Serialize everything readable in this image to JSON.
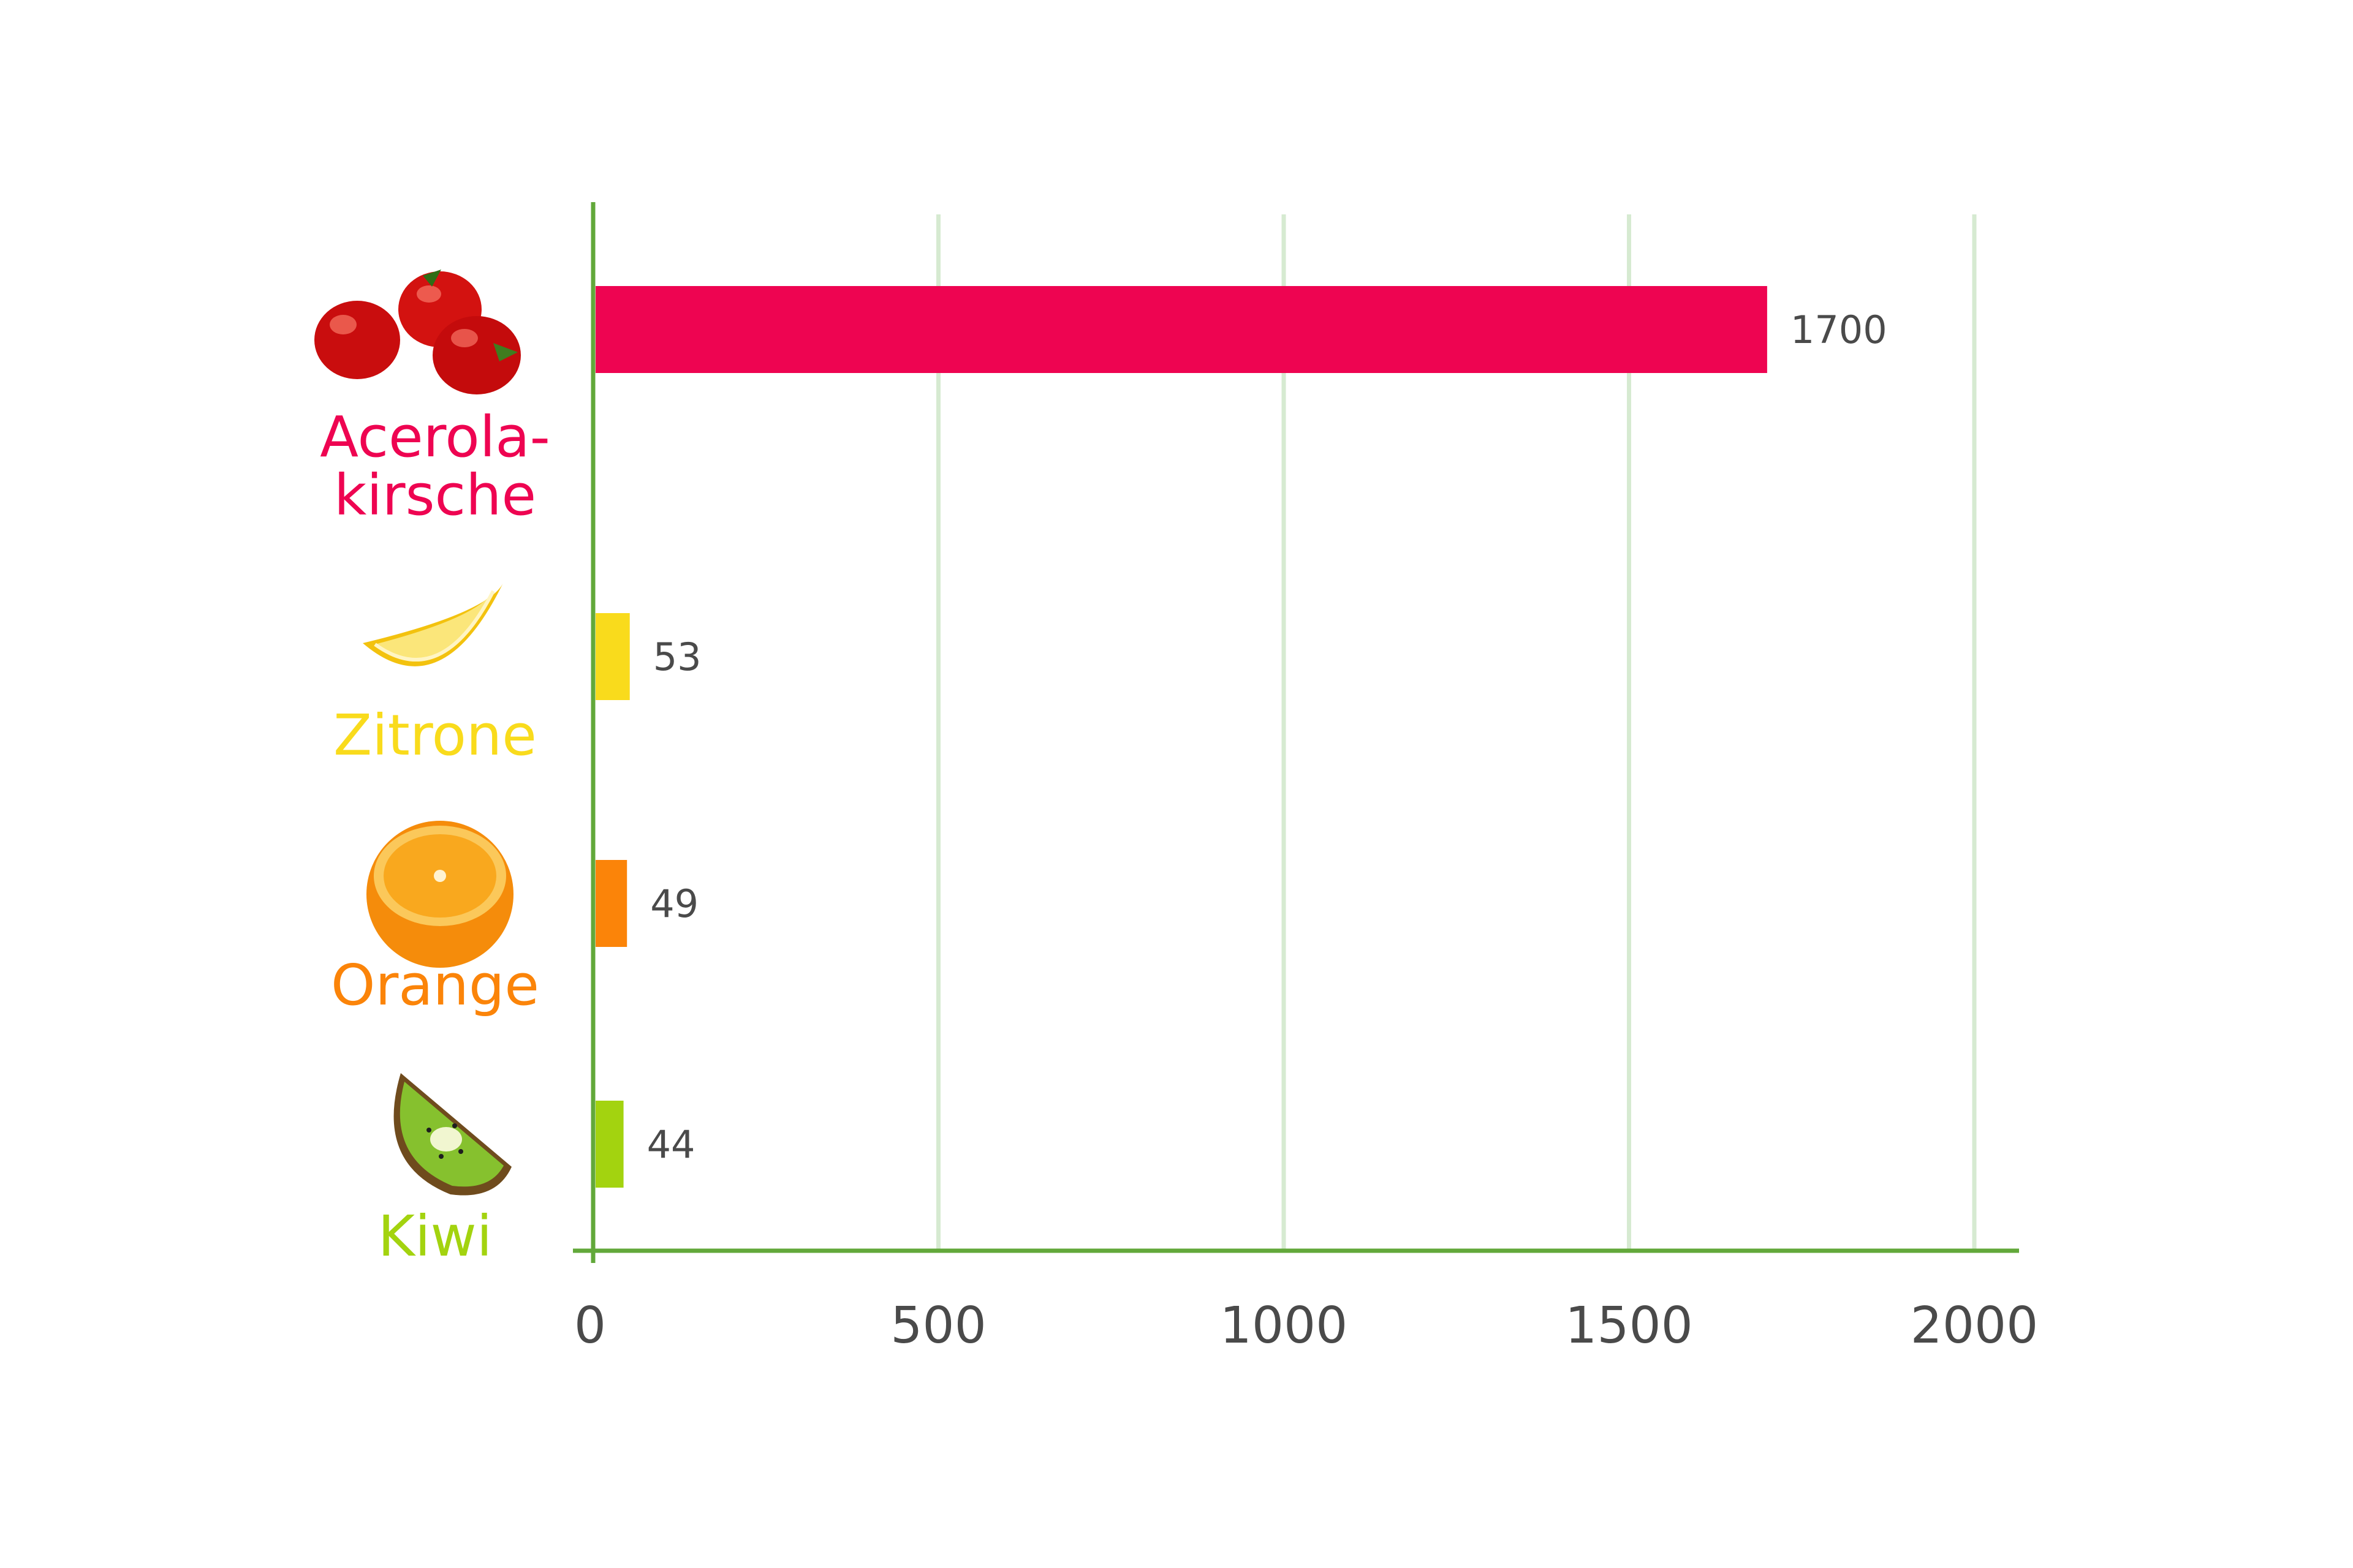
{
  "chart_data": {
    "type": "bar",
    "orientation": "horizontal",
    "categories": [
      "Acerola-kirsche",
      "Zitrone",
      "Orange",
      "Kiwi"
    ],
    "category_label_lines": [
      [
        "Acerola-",
        "kirsche"
      ],
      [
        "Zitrone"
      ],
      [
        "Orange"
      ],
      [
        "Kiwi"
      ]
    ],
    "values": [
      1700,
      53,
      49,
      44
    ],
    "value_labels": [
      "1700",
      "53",
      "49",
      "44"
    ],
    "bar_colors": [
      "#ee0451",
      "#f9db1c",
      "#fb8409",
      "#a3d30f"
    ],
    "category_icons": [
      "acerola-cherry-icon",
      "lemon-icon",
      "orange-icon",
      "kiwi-icon"
    ],
    "xlim": [
      0,
      2000
    ],
    "x_ticks": [
      0,
      500,
      1000,
      1500,
      2000
    ],
    "x_tick_labels": [
      "0",
      "500",
      "1000",
      "1500",
      "2000"
    ],
    "grid": true,
    "axis_color": "#62a83a",
    "grid_color": "#d6ead1",
    "legend": "none"
  }
}
